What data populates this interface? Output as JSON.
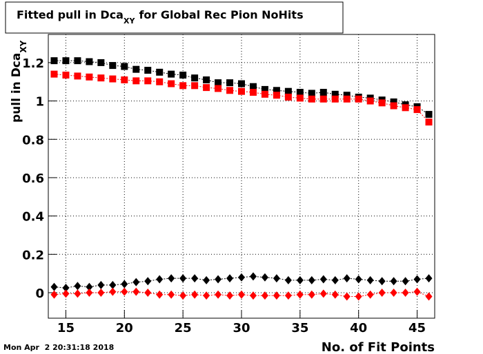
{
  "chart_data": {
    "type": "scatter",
    "title": {
      "main": "Fitted pull in Dca",
      "sub": "XY",
      "tail": "for Global Rec Pion NoHits"
    },
    "y_label": {
      "main": "pull in Dca",
      "sub": "XY"
    },
    "x_label": "No. of Fit Points",
    "timestamp": "Mon Apr  2 20:31:18 2018",
    "x": [
      14,
      15,
      16,
      17,
      18,
      19,
      20,
      21,
      22,
      23,
      24,
      25,
      26,
      27,
      28,
      29,
      30,
      31,
      32,
      33,
      34,
      35,
      36,
      37,
      38,
      39,
      40,
      41,
      42,
      43,
      44,
      45,
      46
    ],
    "series": [
      {
        "color": "#000000",
        "marker": "square",
        "values": [
          1.21,
          1.21,
          1.21,
          1.205,
          1.2,
          1.185,
          1.18,
          1.165,
          1.16,
          1.15,
          1.14,
          1.135,
          1.12,
          1.11,
          1.095,
          1.095,
          1.09,
          1.075,
          1.06,
          1.055,
          1.05,
          1.045,
          1.04,
          1.045,
          1.035,
          1.03,
          1.02,
          1.015,
          1.005,
          0.995,
          0.98,
          0.97,
          0.93
        ]
      },
      {
        "color": "#ff0000",
        "marker": "square",
        "values": [
          1.14,
          1.135,
          1.13,
          1.125,
          1.12,
          1.115,
          1.11,
          1.105,
          1.105,
          1.1,
          1.09,
          1.08,
          1.08,
          1.07,
          1.065,
          1.055,
          1.05,
          1.045,
          1.035,
          1.03,
          1.02,
          1.015,
          1.01,
          1.01,
          1.01,
          1.01,
          1.01,
          1.0,
          0.99,
          0.975,
          0.965,
          0.955,
          0.89
        ]
      },
      {
        "color": "#000000",
        "marker": "diamond",
        "values": [
          0.03,
          0.025,
          0.035,
          0.03,
          0.04,
          0.04,
          0.045,
          0.055,
          0.06,
          0.07,
          0.075,
          0.075,
          0.075,
          0.065,
          0.07,
          0.075,
          0.08,
          0.085,
          0.08,
          0.075,
          0.065,
          0.065,
          0.065,
          0.07,
          0.065,
          0.075,
          0.07,
          0.065,
          0.06,
          0.06,
          0.06,
          0.07,
          0.075
        ]
      },
      {
        "color": "#ff0000",
        "marker": "diamond",
        "values": [
          -0.01,
          -0.005,
          -0.005,
          0,
          0,
          0.005,
          0.005,
          0.005,
          0,
          -0.01,
          -0.01,
          -0.015,
          -0.01,
          -0.015,
          -0.01,
          -0.015,
          -0.01,
          -0.015,
          -0.015,
          -0.015,
          -0.015,
          -0.01,
          -0.01,
          -0.005,
          -0.01,
          -0.02,
          -0.02,
          -0.01,
          0,
          0,
          0,
          0.005,
          -0.02
        ]
      }
    ],
    "xlim": [
      13.5,
      46.5
    ],
    "ylim": [
      -0.133,
      1.347
    ],
    "xticks": [
      15,
      20,
      25,
      30,
      35,
      40,
      45
    ],
    "yticks": [
      0,
      0.2,
      0.4,
      0.6,
      0.8,
      1,
      1.2
    ],
    "grid": true
  }
}
